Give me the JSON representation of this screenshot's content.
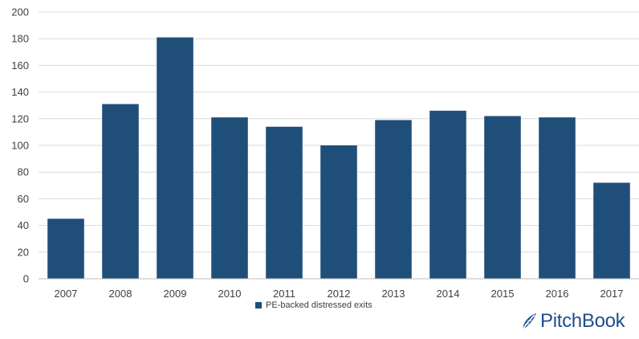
{
  "chart_data": {
    "type": "bar",
    "title": "",
    "xlabel": "",
    "ylabel": "",
    "categories": [
      "2007",
      "2008",
      "2009",
      "2010",
      "2011",
      "2012",
      "2013",
      "2014",
      "2015",
      "2016",
      "2017"
    ],
    "series": [
      {
        "name": "PE-backed distressed exits",
        "values": [
          45,
          131,
          181,
          121,
          114,
          100,
          119,
          126,
          122,
          121,
          72
        ],
        "color": "#1f4e79"
      }
    ],
    "ylim": [
      0,
      200
    ],
    "yticks": [
      "0",
      "20",
      "40",
      "60",
      "80",
      "100",
      "120",
      "140",
      "160",
      "180",
      "200"
    ],
    "grid": true,
    "legend_position": "bottom-center"
  },
  "logo": {
    "name": "PitchBook",
    "icon": "pitchbook-leaf-icon",
    "color": "#1f4e8c"
  }
}
